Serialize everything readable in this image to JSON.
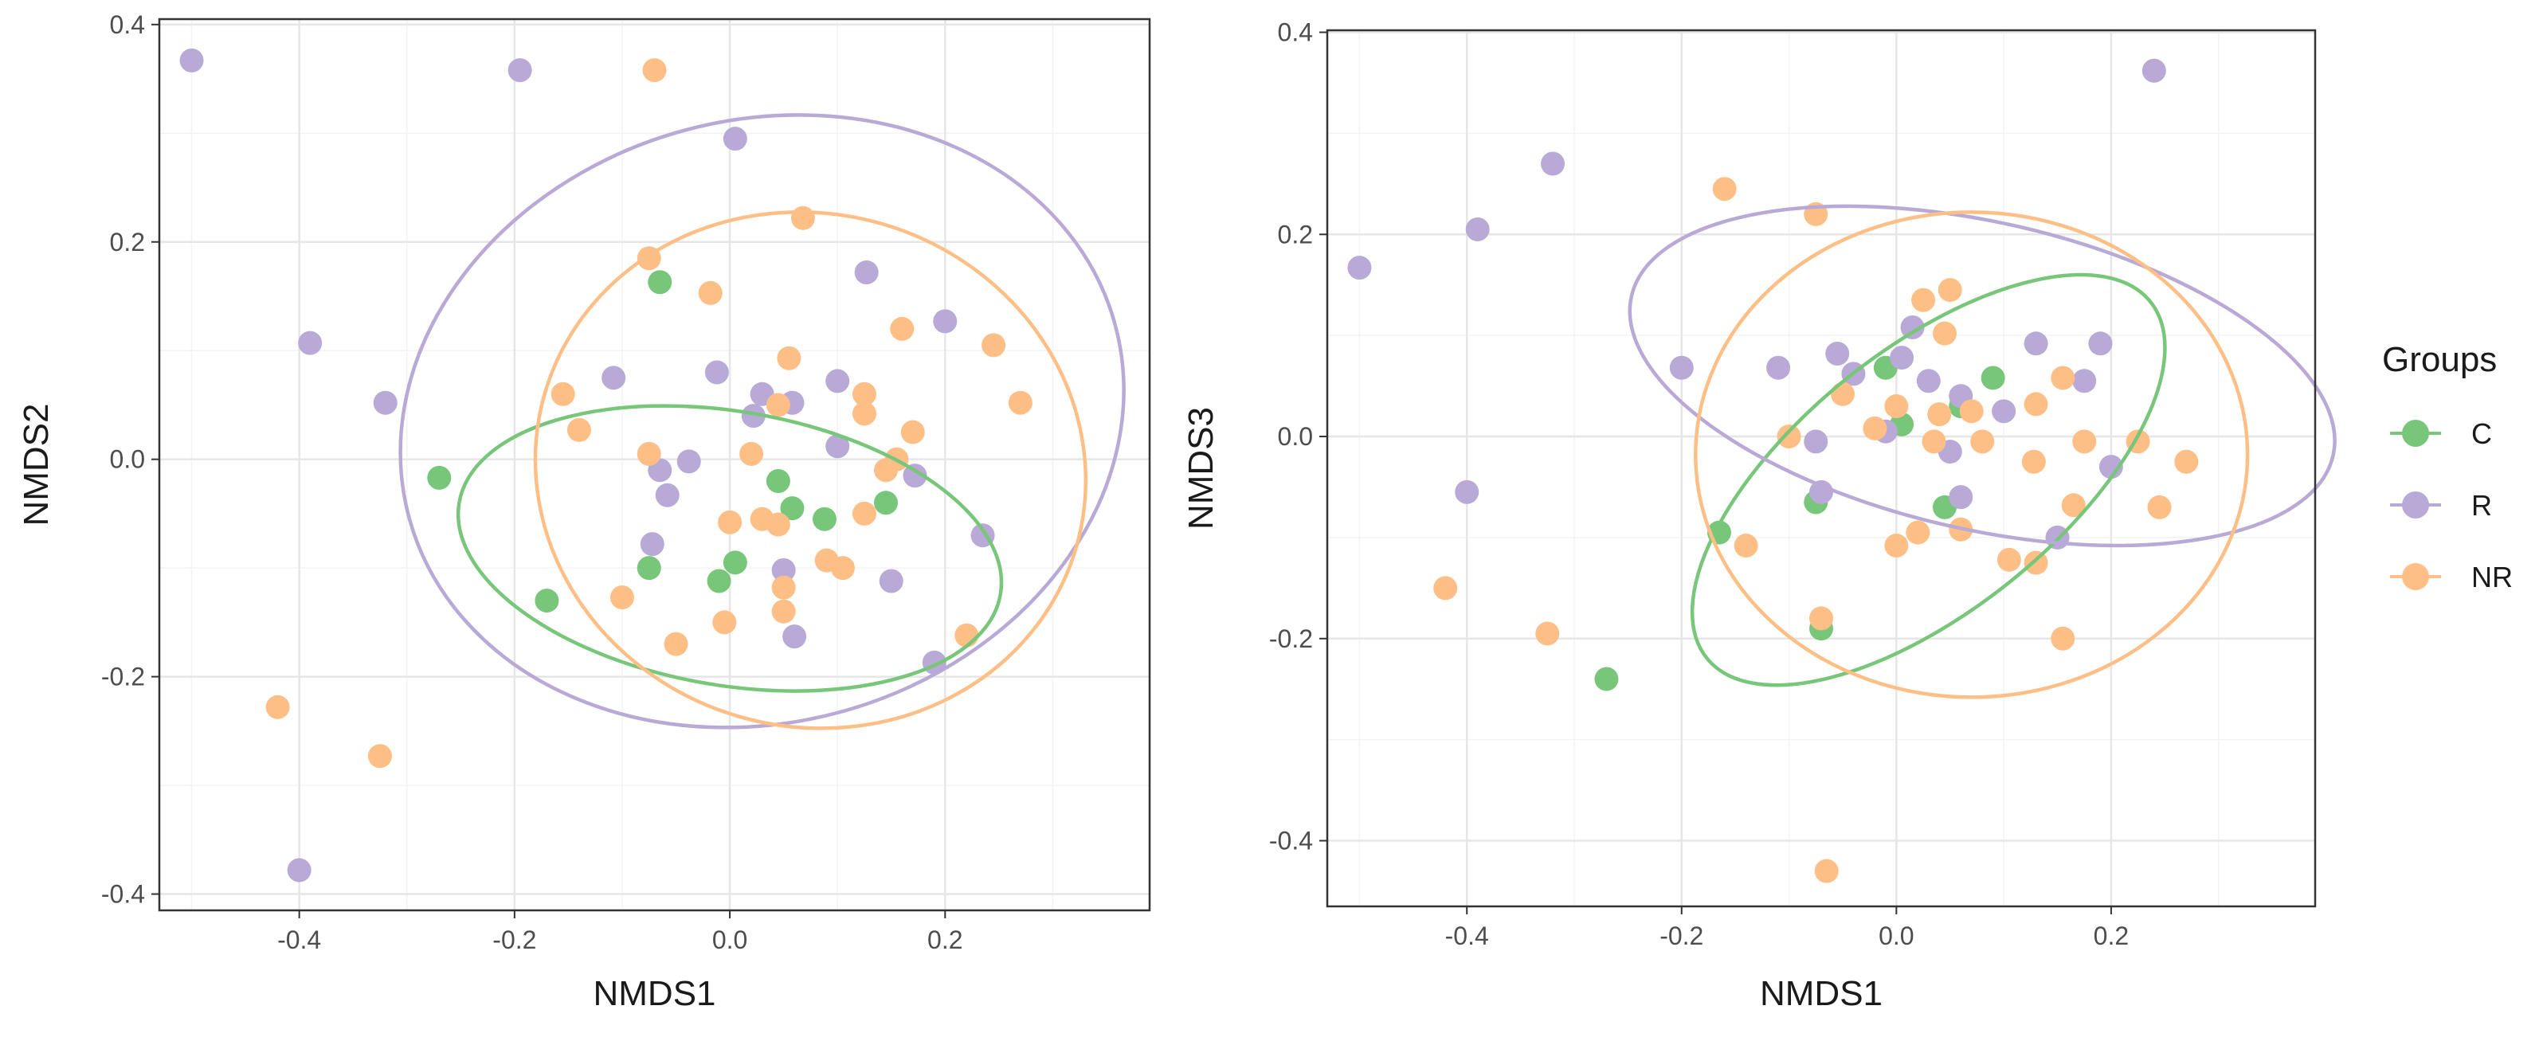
{
  "chart_data": [
    {
      "type": "scatter",
      "title": "",
      "xlabel": "NMDS1",
      "ylabel": "NMDS2",
      "xlim": [
        -0.53,
        0.39
      ],
      "ylim": [
        -0.415,
        0.405
      ],
      "xticks": [
        -0.4,
        -0.2,
        0.0,
        0.2
      ],
      "xtick_labels": [
        "-0.4",
        "-0.2",
        "0.0",
        "0.2"
      ],
      "yticks": [
        -0.4,
        -0.2,
        0.0,
        0.2,
        0.4
      ],
      "ytick_labels": [
        "-0.4",
        "-0.2",
        "0.0",
        "0.2",
        "0.4"
      ],
      "grid": true,
      "series": [
        {
          "name": "C",
          "color": "#77c679",
          "points": [
            [
              -0.27,
              -0.017
            ],
            [
              -0.065,
              0.163
            ],
            [
              -0.075,
              -0.1
            ],
            [
              -0.17,
              -0.13
            ],
            [
              -0.01,
              -0.112
            ],
            [
              0.005,
              -0.095
            ],
            [
              0.045,
              -0.02
            ],
            [
              0.058,
              -0.045
            ],
            [
              0.088,
              -0.055
            ],
            [
              0.145,
              -0.04
            ]
          ],
          "ellipse": {
            "cx": 0.0,
            "cy": -0.082,
            "rx": 0.255,
            "ry": 0.126,
            "angle_deg": 9.6
          }
        },
        {
          "name": "R",
          "color": "#b8a9d6",
          "points": [
            [
              -0.5,
              0.367
            ],
            [
              -0.195,
              0.358
            ],
            [
              0.005,
              0.295
            ],
            [
              -0.39,
              0.107
            ],
            [
              -0.32,
              0.052
            ],
            [
              -0.108,
              0.075
            ],
            [
              -0.012,
              0.08
            ],
            [
              0.03,
              0.06
            ],
            [
              0.022,
              0.04
            ],
            [
              0.058,
              0.052
            ],
            [
              0.1,
              0.072
            ],
            [
              0.127,
              0.172
            ],
            [
              0.2,
              0.127
            ],
            [
              0.1,
              0.012
            ],
            [
              0.172,
              -0.015
            ],
            [
              -0.065,
              -0.01
            ],
            [
              -0.038,
              -0.002
            ],
            [
              -0.058,
              -0.033
            ],
            [
              -0.072,
              -0.078
            ],
            [
              0.05,
              -0.102
            ],
            [
              0.15,
              -0.112
            ],
            [
              0.06,
              -0.163
            ],
            [
              0.235,
              -0.07
            ],
            [
              0.19,
              -0.187
            ],
            [
              -0.4,
              -0.378
            ]
          ],
          "ellipse": {
            "cx": 0.03,
            "cy": 0.035,
            "rx": 0.34,
            "ry": 0.277,
            "angle_deg": -15.6
          }
        },
        {
          "name": "NR",
          "color": "#fdbf86",
          "points": [
            [
              -0.07,
              0.358
            ],
            [
              0.068,
              0.222
            ],
            [
              -0.075,
              0.185
            ],
            [
              -0.018,
              0.153
            ],
            [
              -0.155,
              0.06
            ],
            [
              -0.14,
              0.027
            ],
            [
              -0.075,
              0.005
            ],
            [
              0.055,
              0.093
            ],
            [
              0.045,
              0.05
            ],
            [
              0.125,
              0.06
            ],
            [
              0.125,
              0.042
            ],
            [
              0.16,
              0.12
            ],
            [
              0.245,
              0.105
            ],
            [
              0.27,
              0.052
            ],
            [
              0.17,
              0.025
            ],
            [
              0.155,
              0.0
            ],
            [
              0.145,
              -0.01
            ],
            [
              0.02,
              0.005
            ],
            [
              0.0,
              -0.058
            ],
            [
              0.03,
              -0.055
            ],
            [
              0.045,
              -0.06
            ],
            [
              0.125,
              -0.05
            ],
            [
              0.05,
              -0.118
            ],
            [
              0.05,
              -0.14
            ],
            [
              0.09,
              -0.093
            ],
            [
              0.105,
              -0.1
            ],
            [
              -0.1,
              -0.127
            ],
            [
              -0.05,
              -0.17
            ],
            [
              -0.005,
              -0.15
            ],
            [
              0.22,
              -0.162
            ],
            [
              -0.42,
              -0.228
            ],
            [
              -0.325,
              -0.273
            ]
          ],
          "ellipse": {
            "cx": 0.075,
            "cy": -0.01,
            "rx": 0.257,
            "ry": 0.236,
            "angle_deg": 16.0
          }
        }
      ]
    },
    {
      "type": "scatter",
      "title": "",
      "xlabel": "NMDS1",
      "ylabel": "NMDS3",
      "xlim": [
        -0.53,
        0.39
      ],
      "ylim": [
        -0.465,
        0.402
      ],
      "xticks": [
        -0.4,
        -0.2,
        0.0,
        0.2
      ],
      "xtick_labels": [
        "-0.4",
        "-0.2",
        "0.0",
        "0.2"
      ],
      "yticks": [
        -0.4,
        -0.2,
        0.0,
        0.2,
        0.4
      ],
      "ytick_labels": [
        "-0.4",
        "-0.2",
        "0.0",
        "0.2",
        "0.4"
      ],
      "grid": true,
      "series": [
        {
          "name": "C",
          "color": "#77c679",
          "points": [
            [
              -0.27,
              -0.24
            ],
            [
              -0.165,
              -0.095
            ],
            [
              -0.07,
              -0.19
            ],
            [
              -0.075,
              -0.065
            ],
            [
              -0.01,
              0.068
            ],
            [
              0.005,
              0.012
            ],
            [
              0.045,
              -0.07
            ],
            [
              0.06,
              0.03
            ],
            [
              0.09,
              0.058
            ]
          ],
          "ellipse": {
            "cx": 0.03,
            "cy": -0.043,
            "rx": 0.265,
            "ry": 0.129,
            "angle_deg": -38.8
          }
        },
        {
          "name": "R",
          "color": "#b8a9d6",
          "points": [
            [
              -0.5,
              0.167
            ],
            [
              -0.32,
              0.27
            ],
            [
              -0.39,
              0.205
            ],
            [
              0.24,
              0.362
            ],
            [
              -0.2,
              0.068
            ],
            [
              -0.11,
              0.068
            ],
            [
              -0.055,
              0.082
            ],
            [
              -0.04,
              0.062
            ],
            [
              0.015,
              0.108
            ],
            [
              0.005,
              0.078
            ],
            [
              0.03,
              0.055
            ],
            [
              0.06,
              0.04
            ],
            [
              -0.075,
              -0.005
            ],
            [
              -0.01,
              0.005
            ],
            [
              0.05,
              -0.015
            ],
            [
              0.06,
              -0.06
            ],
            [
              0.1,
              0.025
            ],
            [
              0.13,
              0.092
            ],
            [
              0.175,
              0.055
            ],
            [
              0.19,
              0.092
            ],
            [
              0.2,
              -0.03
            ],
            [
              0.15,
              -0.1
            ],
            [
              -0.07,
              -0.055
            ],
            [
              -0.4,
              -0.055
            ]
          ],
          "ellipse": {
            "cx": 0.08,
            "cy": 0.06,
            "rx": 0.335,
            "ry": 0.152,
            "angle_deg": 12.8
          }
        },
        {
          "name": "NR",
          "color": "#fdbf86",
          "points": [
            [
              -0.16,
              0.245
            ],
            [
              -0.075,
              0.22
            ],
            [
              0.05,
              0.145
            ],
            [
              0.025,
              0.135
            ],
            [
              0.045,
              0.102
            ],
            [
              -0.05,
              0.042
            ],
            [
              0.0,
              0.03
            ],
            [
              0.04,
              0.022
            ],
            [
              0.07,
              0.025
            ],
            [
              -0.1,
              0.0
            ],
            [
              -0.02,
              0.008
            ],
            [
              0.035,
              -0.005
            ],
            [
              0.08,
              -0.005
            ],
            [
              0.13,
              0.032
            ],
            [
              0.155,
              0.058
            ],
            [
              0.175,
              -0.005
            ],
            [
              0.225,
              -0.005
            ],
            [
              0.27,
              -0.025
            ],
            [
              0.245,
              -0.07
            ],
            [
              0.165,
              -0.068
            ],
            [
              0.128,
              -0.025
            ],
            [
              0.06,
              -0.092
            ],
            [
              0.02,
              -0.095
            ],
            [
              0.0,
              -0.108
            ],
            [
              -0.14,
              -0.108
            ],
            [
              0.105,
              -0.122
            ],
            [
              0.13,
              -0.125
            ],
            [
              -0.07,
              -0.18
            ],
            [
              0.155,
              -0.2
            ],
            [
              -0.42,
              -0.15
            ],
            [
              -0.325,
              -0.195
            ],
            [
              -0.065,
              -0.43
            ]
          ],
          "ellipse": {
            "cx": 0.07,
            "cy": -0.018,
            "rx": 0.257,
            "ry": 0.24,
            "angle_deg": 0.0
          }
        }
      ]
    }
  ],
  "legend": {
    "title": "Groups",
    "items": [
      {
        "label": "C",
        "color": "#77c679"
      },
      {
        "label": "R",
        "color": "#b8a9d6"
      },
      {
        "label": "NR",
        "color": "#fdbf86"
      }
    ]
  }
}
